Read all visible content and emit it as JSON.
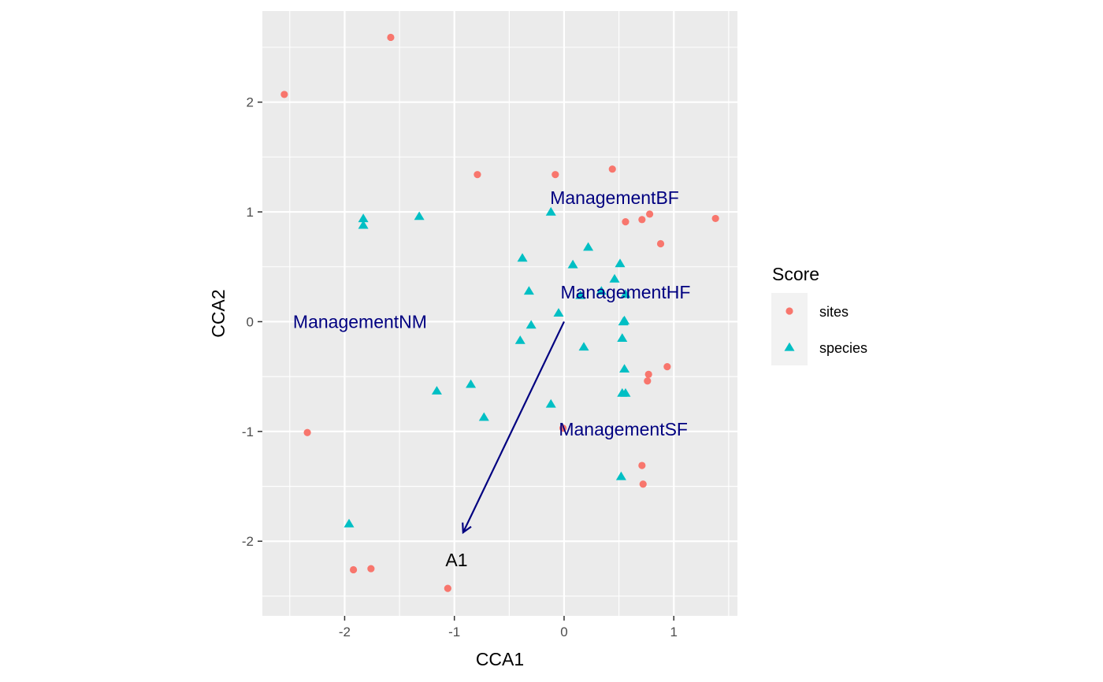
{
  "chart_data": {
    "type": "scatter",
    "xlabel": "CCA1",
    "ylabel": "CCA2",
    "xlim": [
      -2.75,
      1.58
    ],
    "ylim": [
      -2.68,
      2.83
    ],
    "xticks": [
      -2,
      -1,
      0,
      1
    ],
    "xtick_labels": [
      "-2",
      "-1",
      "0",
      "1"
    ],
    "yticks": [
      -2,
      -1,
      0,
      1,
      2
    ],
    "ytick_labels": [
      "-2",
      "-1",
      "0",
      "1",
      "2"
    ],
    "grid": true,
    "legend": {
      "title": "Score",
      "placement": "right",
      "entries": [
        {
          "label": "sites",
          "shape": "circle",
          "color": "#F8766D"
        },
        {
          "label": "species",
          "shape": "triangle",
          "color": "#00BFC4"
        }
      ]
    },
    "series": [
      {
        "name": "sites",
        "shape": "circle",
        "color": "#F8766D",
        "points": [
          [
            -1.58,
            2.59
          ],
          [
            -2.55,
            2.07
          ],
          [
            -0.79,
            1.34
          ],
          [
            -0.08,
            1.34
          ],
          [
            0.44,
            1.39
          ],
          [
            0.56,
            0.91
          ],
          [
            0.71,
            0.93
          ],
          [
            0.78,
            0.98
          ],
          [
            1.38,
            0.94
          ],
          [
            0.88,
            0.71
          ],
          [
            0.94,
            -0.41
          ],
          [
            0.77,
            -0.48
          ],
          [
            0.76,
            -0.54
          ],
          [
            -2.34,
            -1.01
          ],
          [
            -0.01,
            -0.97
          ],
          [
            0.71,
            -1.31
          ],
          [
            0.72,
            -1.48
          ],
          [
            -1.92,
            -2.26
          ],
          [
            -1.76,
            -2.25
          ],
          [
            -1.06,
            -2.43
          ]
        ]
      },
      {
        "name": "species",
        "shape": "triangle",
        "color": "#00BFC4",
        "points": [
          [
            -1.83,
            0.94
          ],
          [
            -1.83,
            0.88
          ],
          [
            -1.32,
            0.96
          ],
          [
            -0.12,
            1.0
          ],
          [
            -0.38,
            0.58
          ],
          [
            0.08,
            0.52
          ],
          [
            0.22,
            0.68
          ],
          [
            0.51,
            0.53
          ],
          [
            0.46,
            0.39
          ],
          [
            -0.32,
            0.28
          ],
          [
            0.15,
            0.24
          ],
          [
            0.34,
            0.28
          ],
          [
            0.56,
            0.25
          ],
          [
            -0.05,
            0.08
          ],
          [
            -0.3,
            -0.03
          ],
          [
            0.54,
            0.0
          ],
          [
            0.55,
            0.01
          ],
          [
            -0.4,
            -0.17
          ],
          [
            0.18,
            -0.23
          ],
          [
            0.53,
            -0.15
          ],
          [
            0.55,
            -0.43
          ],
          [
            -0.85,
            -0.57
          ],
          [
            -1.16,
            -0.63
          ],
          [
            0.53,
            -0.65
          ],
          [
            0.56,
            -0.65
          ],
          [
            -0.12,
            -0.75
          ],
          [
            -0.73,
            -0.87
          ],
          [
            0.52,
            -1.41
          ],
          [
            -1.96,
            -1.84
          ]
        ]
      }
    ],
    "biplot_arrows": [
      {
        "label": "A1",
        "from": [
          0,
          0
        ],
        "to": [
          -0.92,
          -1.92
        ],
        "label_at": [
          -0.98,
          -2.17
        ],
        "color": "#000000"
      }
    ],
    "centroid_labels": [
      {
        "label": "ManagementBF",
        "at": [
          0.46,
          1.13
        ],
        "color": "#000080"
      },
      {
        "label": "ManagementHF",
        "at": [
          0.56,
          0.27
        ],
        "color": "#000080"
      },
      {
        "label": "ManagementNM",
        "at": [
          -1.86,
          0.0
        ],
        "color": "#000080"
      },
      {
        "label": "ManagementSF",
        "at": [
          0.54,
          -0.98
        ],
        "color": "#000080"
      }
    ],
    "colors": {
      "panel": "#EBEBEB",
      "grid_major": "#FFFFFF",
      "arrow": "#000080",
      "legend_key": "#F2F2F2"
    }
  }
}
